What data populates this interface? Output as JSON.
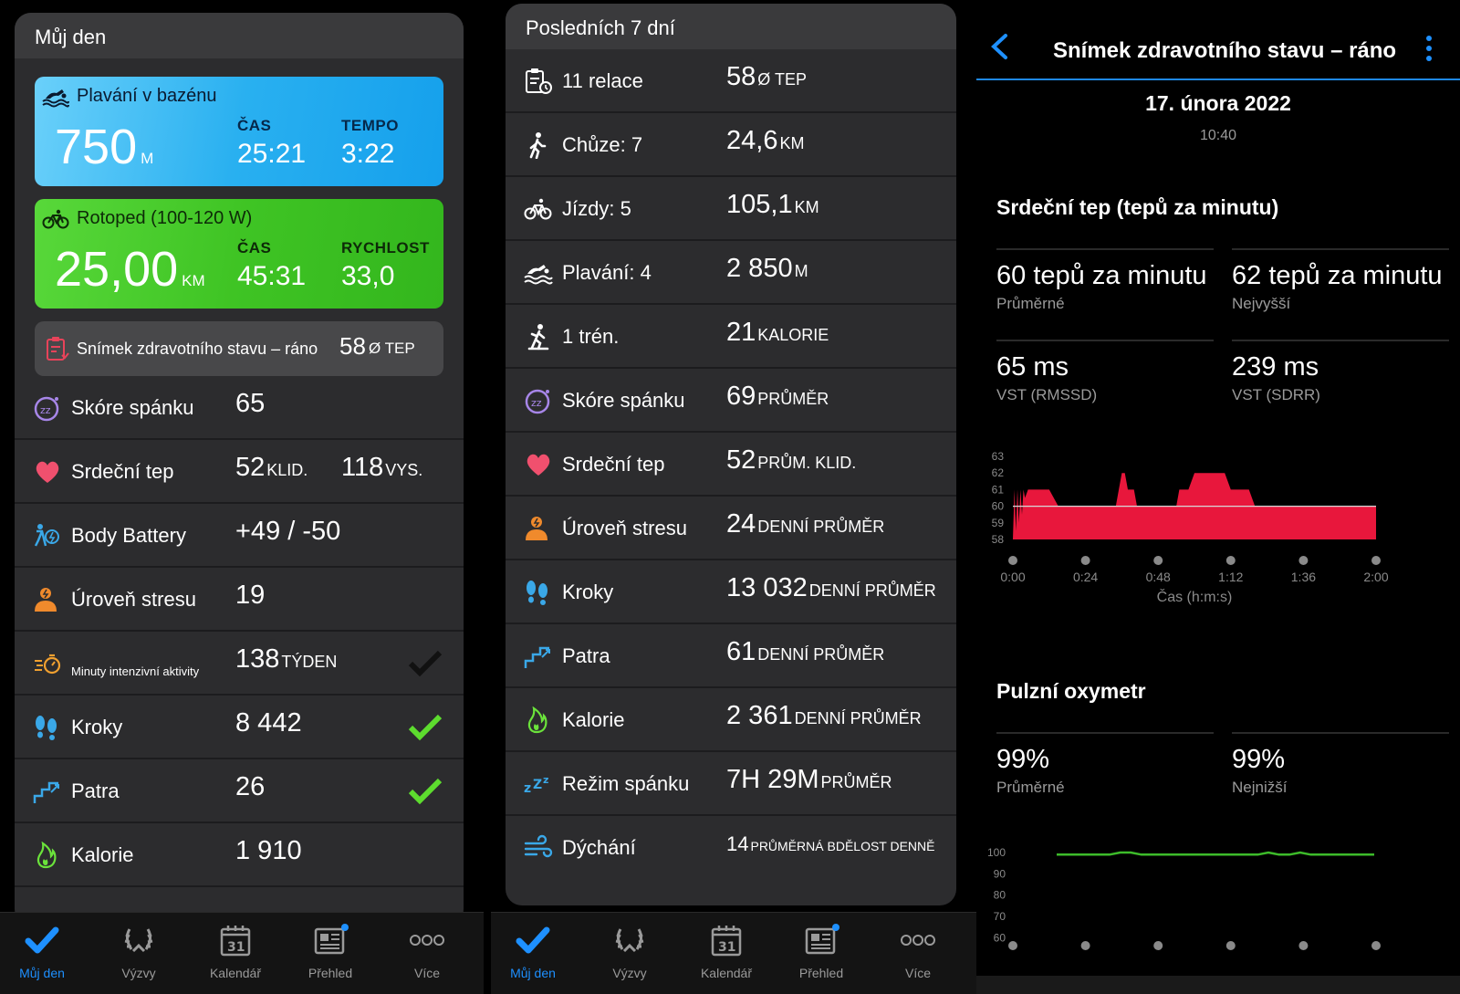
{
  "panel1": {
    "header": "Můj den",
    "swim": {
      "title": "Plavání v bazénu",
      "distance": "750",
      "distance_unit": "M",
      "time_label": "ČAS",
      "time": "25:21",
      "pace_label": "TEMPO",
      "pace": "3:22"
    },
    "bike": {
      "title": "Rotoped (100-120 W)",
      "distance": "25,00",
      "distance_unit": "KM",
      "time_label": "ČAS",
      "time": "45:31",
      "speed_label": "RYCHLOST",
      "speed": "33,0"
    },
    "snapshot": {
      "label": "Snímek zdravotního stavu – ráno",
      "value": "58",
      "unit": "Ø TEP"
    },
    "rows": [
      {
        "name": "Skóre spánku",
        "value": "65",
        "unit": ""
      },
      {
        "name": "Srdeční tep",
        "value": "52",
        "unit": "KLID.",
        "value2": "118",
        "unit2": "VYS."
      },
      {
        "name": "Body Battery",
        "value": "+49 / -50",
        "unit": ""
      },
      {
        "name": "Úroveň stresu",
        "value": "19",
        "unit": ""
      },
      {
        "name": "Minuty intenzivní aktivity",
        "value": "138",
        "unit": "TÝDEN"
      },
      {
        "name": "Kroky",
        "value": "8 442",
        "unit": ""
      },
      {
        "name": "Patra",
        "value": "26",
        "unit": ""
      },
      {
        "name": "Kalorie",
        "value": "1 910",
        "unit": ""
      }
    ]
  },
  "panel2": {
    "header": "Posledních 7 dní",
    "rows": [
      {
        "name": "11 relace",
        "value": "58",
        "unit": "Ø TEP"
      },
      {
        "name": "Chůze: 7",
        "value": "24,6",
        "unit": "KM"
      },
      {
        "name": "Jízdy: 5",
        "value": "105,1",
        "unit": "KM"
      },
      {
        "name": "Plavání: 4",
        "value": "2 850",
        "unit": "M"
      },
      {
        "name": "1 trén.",
        "value": "21",
        "unit": "KALORIE"
      },
      {
        "name": "Skóre spánku",
        "value": "69",
        "unit": "PRŮMĚR"
      },
      {
        "name": "Srdeční tep",
        "value": "52",
        "unit": "PRŮM. KLID."
      },
      {
        "name": "Úroveň stresu",
        "value": "24",
        "unit": "DENNÍ PRŮMĚR"
      },
      {
        "name": "Kroky",
        "value": "13 032",
        "unit": "DENNÍ PRŮMĚR"
      },
      {
        "name": "Patra",
        "value": "61",
        "unit": "DENNÍ PRŮMĚR"
      },
      {
        "name": "Kalorie",
        "value": "2 361",
        "unit": "DENNÍ PRŮMĚR"
      },
      {
        "name": "Režim spánku",
        "value": "7H 29M",
        "unit": "PRŮMĚR"
      },
      {
        "name": "Dýchání",
        "value": "14",
        "unit": "PRŮMĚRNÁ BDĚLOST DENNĚ"
      }
    ]
  },
  "tabs": [
    {
      "label": "Můj den"
    },
    {
      "label": "Výzvy"
    },
    {
      "label": "Kalendář",
      "day": "31"
    },
    {
      "label": "Přehled"
    },
    {
      "label": "Více"
    }
  ],
  "panel3": {
    "title": "Snímek zdravotního stavu – ráno",
    "date": "17. února 2022",
    "time": "10:40",
    "hr_title": "Srdeční tep (tepů za minutu)",
    "hr_stats": [
      {
        "value": "60 tepů za minutu",
        "label": "Průměrné"
      },
      {
        "value": "62 tepů za minutu",
        "label": "Nejvyšší"
      },
      {
        "value": "65 ms",
        "label": "VST (RMSSD)"
      },
      {
        "value": "239 ms",
        "label": "VST (SDRR)"
      }
    ],
    "spo2_title": "Pulzní oxymetr",
    "spo2_stats": [
      {
        "value": "99%",
        "label": "Průměrné"
      },
      {
        "value": "99%",
        "label": "Nejnižší"
      }
    ]
  },
  "chart_data": [
    {
      "type": "area",
      "title": "",
      "xlabel": "Čas (h:m:s)",
      "ylabel": "",
      "x_ticks": [
        "0:00",
        "0:24",
        "0:48",
        "1:12",
        "1:36",
        "2:00"
      ],
      "y_ticks": [
        63,
        62,
        61,
        60,
        59,
        58
      ],
      "ylim": [
        58,
        63
      ],
      "average_line": 60,
      "color": "#e8173c",
      "x": [
        0,
        0.5,
        1,
        1.5,
        2,
        2.5,
        3,
        3.5,
        4,
        5,
        6,
        8,
        10,
        12,
        15,
        18,
        20,
        22,
        24,
        26,
        28,
        30,
        32,
        34,
        35,
        36,
        37,
        38,
        40,
        41,
        42,
        43,
        45,
        48,
        50,
        52,
        54,
        55,
        56,
        58,
        60,
        62,
        64,
        66,
        68,
        70,
        72,
        74,
        76,
        78,
        80,
        84,
        88,
        92,
        96,
        100,
        104,
        108,
        112,
        116,
        120
      ],
      "values": [
        58,
        61,
        58.5,
        61,
        59,
        61,
        59.5,
        61,
        60.5,
        61,
        61,
        61,
        61,
        61,
        60,
        60,
        60,
        60,
        60,
        60,
        60,
        60,
        60,
        60,
        61,
        62,
        62,
        61,
        61,
        60,
        60,
        60,
        60,
        60,
        60,
        60,
        60,
        61,
        61,
        61,
        62,
        62,
        62,
        62,
        62,
        62,
        61,
        61,
        61,
        61,
        60,
        60,
        60,
        60,
        60,
        60,
        60,
        60,
        60,
        60,
        60
      ]
    },
    {
      "type": "line",
      "title": "",
      "y_ticks": [
        100,
        90,
        80,
        70,
        60
      ],
      "ylim": [
        58,
        100
      ],
      "color": "#3dbb2a",
      "x": [
        0,
        4,
        8,
        12,
        16,
        20,
        24,
        28,
        32,
        36,
        40,
        44,
        48,
        52,
        56,
        60,
        64,
        68,
        72,
        76,
        80,
        84,
        88,
        92,
        96,
        100,
        104,
        108,
        112,
        116,
        120
      ],
      "values": [
        99,
        99,
        99,
        99,
        99,
        99,
        100,
        100,
        99,
        99,
        99,
        99,
        99,
        99,
        99,
        99,
        99,
        99,
        99,
        99,
        100,
        99,
        99,
        100,
        99,
        99,
        99,
        99,
        99,
        99,
        99
      ]
    }
  ]
}
